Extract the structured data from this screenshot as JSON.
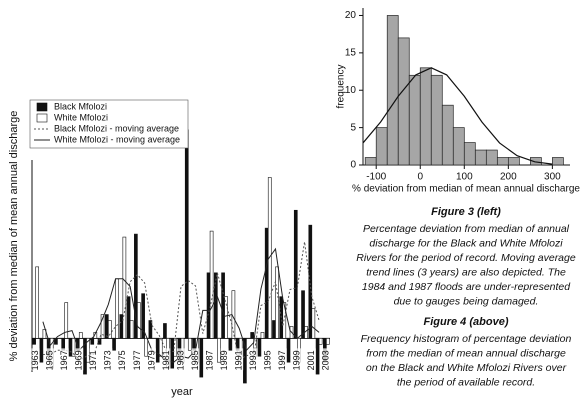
{
  "chart_data": [
    {
      "type": "bar",
      "y_label": "% deviation from median of mean annual discharge",
      "x_label": "year",
      "categories": [
        "1963",
        null,
        "1965",
        null,
        "1967",
        null,
        "1969",
        null,
        "1971",
        null,
        "1973",
        null,
        "1975",
        null,
        "1977",
        null,
        "1979",
        null,
        "1981",
        null,
        "1983",
        null,
        "1985",
        null,
        "1987",
        null,
        "1989",
        null,
        "1991",
        null,
        "1993",
        null,
        "1995",
        null,
        "1997",
        null,
        "1999",
        null,
        "2001",
        null,
        "2003"
      ],
      "ylim": [
        -90,
        400
      ],
      "series": [
        {
          "name": "Black Mfolozi",
          "type": "bar",
          "color": "#111111",
          "values": [
            -10,
            -40,
            -30,
            -10,
            -20,
            -30,
            -20,
            -60,
            -10,
            -10,
            40,
            -20,
            40,
            70,
            175,
            75,
            30,
            -40,
            25,
            -50,
            -40,
            350,
            -20,
            -65,
            110,
            110,
            110,
            -20,
            -20,
            -75,
            10,
            -30,
            185,
            30,
            70,
            -40,
            215,
            80,
            190,
            -60,
            -40
          ]
        },
        {
          "name": "White Mfolozi",
          "type": "bar",
          "color": "#ffffff",
          "values": [
            120,
            15,
            -50,
            0,
            60,
            -30,
            10,
            -40,
            10,
            40,
            30,
            100,
            170,
            30,
            60,
            -30,
            0,
            -30,
            -50,
            -30,
            -40,
            -20,
            -40,
            0,
            180,
            -40,
            70,
            80,
            -30,
            0,
            -30,
            10,
            270,
            120,
            60,
            20,
            -40,
            20,
            50,
            -10,
            -10
          ]
        },
        {
          "name": "Black Mfolozi - moving average",
          "type": "line",
          "color": "#555555",
          "dash": "dotted",
          "values": [
            null,
            -27,
            -27,
            -20,
            -20,
            -23,
            -37,
            -30,
            -27,
            7,
            3,
            20,
            30,
            95,
            107,
            93,
            22,
            5,
            -22,
            -22,
            87,
            97,
            88,
            8,
            52,
            110,
            67,
            23,
            -38,
            -28,
            -32,
            55,
            62,
            95,
            20,
            82,
            85,
            162,
            70,
            30,
            null
          ]
        },
        {
          "name": "White Mfolozi - moving average",
          "type": "line",
          "color": "#222222",
          "dash": "solid",
          "values": [
            null,
            28,
            -12,
            3,
            10,
            13,
            -20,
            -7,
            3,
            27,
            57,
            100,
            100,
            87,
            20,
            10,
            -20,
            -27,
            -37,
            -40,
            -30,
            -33,
            -20,
            47,
            47,
            70,
            37,
            40,
            17,
            -20,
            -7,
            83,
            133,
            150,
            67,
            13,
            0,
            10,
            20,
            10,
            null
          ]
        }
      ]
    },
    {
      "type": "histogram",
      "x_label": "% deviation from median of mean annual discharge",
      "y_label": "frequency",
      "bins": [
        -125,
        -100,
        -75,
        -50,
        -25,
        0,
        25,
        50,
        75,
        100,
        125,
        150,
        175,
        200,
        225,
        250,
        275,
        300,
        325
      ],
      "values": [
        1,
        5,
        20,
        17,
        12,
        13,
        12,
        8,
        5,
        3,
        2,
        2,
        1,
        1,
        0,
        1,
        0,
        1
      ],
      "color": "#a6a6a6",
      "xlim": [
        -130,
        340
      ],
      "ylim": [
        0,
        21
      ],
      "xticks": [
        -100,
        0,
        100,
        200,
        300
      ],
      "yticks": [
        0,
        5,
        10,
        15,
        20
      ],
      "curve": {
        "x": [
          -130,
          -90,
          -50,
          -10,
          25,
          60,
          100,
          140,
          180,
          220,
          260,
          300
        ],
        "values": [
          2.95,
          5.75,
          9.19,
          12.05,
          13,
          12.05,
          9.19,
          5.75,
          2.95,
          1.24,
          0.43,
          0.12
        ]
      }
    }
  ],
  "captions": [
    {
      "title": "Figure 3 (left)",
      "lines": [
        "Percentage deviation from median of annual",
        "discharge for the Black and White Mfolozi",
        "Rivers for the period of record. Moving average",
        "trend lines (3 years) are also depicted. The",
        "1984 and 1987 floods are under-represented",
        "due to gauges being damaged."
      ]
    },
    {
      "title": "Figure 4 (above)",
      "lines": [
        "Frequency histogram of percentage deviation",
        "from the median of mean annual discharge",
        "on the Black and White Mfolozi Rivers over",
        "the period of available record."
      ]
    }
  ]
}
